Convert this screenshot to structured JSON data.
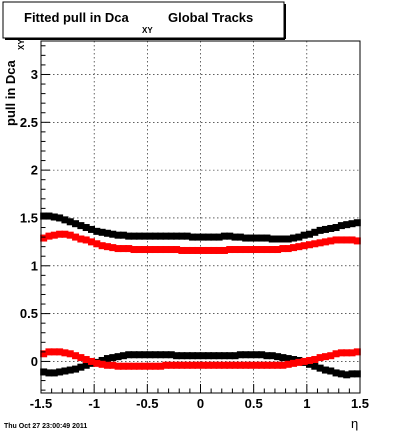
{
  "title": {
    "main": "Fitted pull in Dca",
    "subscript": "XY",
    "suffix": "Global Tracks"
  },
  "ylabel": {
    "main": "pull in Dca",
    "subscript": "XY"
  },
  "xlabel": "η",
  "timestamp": "Thu Oct 27 23:00:49 2011",
  "colors": {
    "series_black": "#000000",
    "series_red": "#ff0000",
    "grid": "#000000",
    "background": "#ffffff"
  },
  "chart_data": {
    "type": "scatter",
    "title": "Fitted pull in Dca XY Global Tracks",
    "xlabel": "η",
    "ylabel": "pull in Dca XY",
    "xlim": [
      -1.5,
      1.5
    ],
    "ylim": [
      -0.33,
      3.35
    ],
    "xticks": [
      -1.5,
      -1,
      -0.5,
      0,
      0.5,
      1,
      1.5
    ],
    "xtick_labels": [
      "-1.5",
      "-1",
      "-0.5",
      "0",
      "0.5",
      "1",
      "1.5"
    ],
    "yticks": [
      0,
      0.5,
      1,
      1.5,
      2,
      2.5,
      3
    ],
    "ytick_labels": [
      "0",
      "0.5",
      "1",
      "1.5",
      "2",
      "2.5",
      "3"
    ],
    "grid": true,
    "legend": "none",
    "series": [
      {
        "color": "#000000",
        "x": [
          -1.475,
          -1.425,
          -1.375,
          -1.325,
          -1.275,
          -1.225,
          -1.175,
          -1.125,
          -1.075,
          -1.025,
          -0.975,
          -0.925,
          -0.875,
          -0.825,
          -0.775,
          -0.725,
          -0.675,
          -0.625,
          -0.575,
          -0.525,
          -0.475,
          -0.425,
          -0.375,
          -0.325,
          -0.275,
          -0.225,
          -0.175,
          -0.125,
          -0.075,
          -0.025,
          0.025,
          0.075,
          0.125,
          0.175,
          0.225,
          0.275,
          0.325,
          0.375,
          0.425,
          0.475,
          0.525,
          0.575,
          0.625,
          0.675,
          0.725,
          0.775,
          0.825,
          0.875,
          0.925,
          0.975,
          1.025,
          1.075,
          1.125,
          1.175,
          1.225,
          1.275,
          1.325,
          1.375,
          1.425,
          1.475
        ],
        "y": [
          1.52,
          1.52,
          1.51,
          1.5,
          1.48,
          1.46,
          1.44,
          1.42,
          1.4,
          1.38,
          1.36,
          1.35,
          1.34,
          1.33,
          1.32,
          1.32,
          1.31,
          1.31,
          1.31,
          1.31,
          1.31,
          1.31,
          1.31,
          1.31,
          1.31,
          1.31,
          1.31,
          1.31,
          1.3,
          1.3,
          1.3,
          1.3,
          1.3,
          1.3,
          1.31,
          1.31,
          1.3,
          1.3,
          1.29,
          1.29,
          1.29,
          1.29,
          1.29,
          1.28,
          1.28,
          1.28,
          1.28,
          1.29,
          1.3,
          1.32,
          1.33,
          1.35,
          1.37,
          1.38,
          1.39,
          1.4,
          1.42,
          1.43,
          1.44,
          1.45
        ]
      },
      {
        "color": "#ff0000",
        "x": [
          -1.475,
          -1.425,
          -1.375,
          -1.325,
          -1.275,
          -1.225,
          -1.175,
          -1.125,
          -1.075,
          -1.025,
          -0.975,
          -0.925,
          -0.875,
          -0.825,
          -0.775,
          -0.725,
          -0.675,
          -0.625,
          -0.575,
          -0.525,
          -0.475,
          -0.425,
          -0.375,
          -0.325,
          -0.275,
          -0.225,
          -0.175,
          -0.125,
          -0.075,
          -0.025,
          0.025,
          0.075,
          0.125,
          0.175,
          0.225,
          0.275,
          0.325,
          0.375,
          0.425,
          0.475,
          0.525,
          0.575,
          0.625,
          0.675,
          0.725,
          0.775,
          0.825,
          0.875,
          0.925,
          0.975,
          1.025,
          1.075,
          1.125,
          1.175,
          1.225,
          1.275,
          1.325,
          1.375,
          1.425,
          1.475
        ],
        "y": [
          1.29,
          1.31,
          1.32,
          1.33,
          1.33,
          1.32,
          1.3,
          1.28,
          1.27,
          1.25,
          1.23,
          1.21,
          1.2,
          1.19,
          1.18,
          1.18,
          1.18,
          1.17,
          1.17,
          1.17,
          1.17,
          1.17,
          1.17,
          1.17,
          1.17,
          1.17,
          1.16,
          1.16,
          1.16,
          1.16,
          1.16,
          1.16,
          1.16,
          1.16,
          1.16,
          1.17,
          1.17,
          1.17,
          1.17,
          1.17,
          1.17,
          1.17,
          1.17,
          1.17,
          1.17,
          1.18,
          1.18,
          1.19,
          1.2,
          1.21,
          1.22,
          1.23,
          1.24,
          1.25,
          1.26,
          1.27,
          1.27,
          1.27,
          1.27,
          1.26
        ]
      },
      {
        "color": "#000000",
        "x": [
          -1.475,
          -1.425,
          -1.375,
          -1.325,
          -1.275,
          -1.225,
          -1.175,
          -1.125,
          -1.075,
          -1.025,
          -0.975,
          -0.925,
          -0.875,
          -0.825,
          -0.775,
          -0.725,
          -0.675,
          -0.625,
          -0.575,
          -0.525,
          -0.475,
          -0.425,
          -0.375,
          -0.325,
          -0.275,
          -0.225,
          -0.175,
          -0.125,
          -0.075,
          -0.025,
          0.025,
          0.075,
          0.125,
          0.175,
          0.225,
          0.275,
          0.325,
          0.375,
          0.425,
          0.475,
          0.525,
          0.575,
          0.625,
          0.675,
          0.725,
          0.775,
          0.825,
          0.875,
          0.925,
          0.975,
          1.025,
          1.075,
          1.125,
          1.175,
          1.225,
          1.275,
          1.325,
          1.375,
          1.425,
          1.475
        ],
        "y": [
          -0.11,
          -0.12,
          -0.12,
          -0.11,
          -0.1,
          -0.09,
          -0.08,
          -0.06,
          -0.04,
          -0.02,
          -0.01,
          0.01,
          0.03,
          0.04,
          0.05,
          0.06,
          0.07,
          0.07,
          0.07,
          0.07,
          0.07,
          0.07,
          0.07,
          0.07,
          0.07,
          0.06,
          0.06,
          0.06,
          0.06,
          0.06,
          0.06,
          0.06,
          0.06,
          0.06,
          0.06,
          0.06,
          0.06,
          0.07,
          0.07,
          0.07,
          0.07,
          0.07,
          0.06,
          0.06,
          0.05,
          0.04,
          0.03,
          0.02,
          0.01,
          -0.01,
          -0.03,
          -0.05,
          -0.07,
          -0.09,
          -0.1,
          -0.12,
          -0.13,
          -0.14,
          -0.13,
          -0.13
        ]
      },
      {
        "color": "#ff0000",
        "x": [
          -1.475,
          -1.425,
          -1.375,
          -1.325,
          -1.275,
          -1.225,
          -1.175,
          -1.125,
          -1.075,
          -1.025,
          -0.975,
          -0.925,
          -0.875,
          -0.825,
          -0.775,
          -0.725,
          -0.675,
          -0.625,
          -0.575,
          -0.525,
          -0.475,
          -0.425,
          -0.375,
          -0.325,
          -0.275,
          -0.225,
          -0.175,
          -0.125,
          -0.075,
          -0.025,
          0.025,
          0.075,
          0.125,
          0.175,
          0.225,
          0.275,
          0.325,
          0.375,
          0.425,
          0.475,
          0.525,
          0.575,
          0.625,
          0.675,
          0.725,
          0.775,
          0.825,
          0.875,
          0.925,
          0.975,
          1.025,
          1.075,
          1.125,
          1.175,
          1.225,
          1.275,
          1.325,
          1.375,
          1.425,
          1.475
        ],
        "y": [
          0.08,
          0.1,
          0.1,
          0.1,
          0.09,
          0.08,
          0.06,
          0.04,
          0.02,
          0.0,
          -0.02,
          -0.03,
          -0.04,
          -0.04,
          -0.05,
          -0.05,
          -0.05,
          -0.05,
          -0.05,
          -0.05,
          -0.05,
          -0.05,
          -0.05,
          -0.04,
          -0.04,
          -0.04,
          -0.04,
          -0.04,
          -0.04,
          -0.04,
          -0.04,
          -0.04,
          -0.04,
          -0.04,
          -0.04,
          -0.04,
          -0.04,
          -0.04,
          -0.04,
          -0.04,
          -0.04,
          -0.04,
          -0.04,
          -0.04,
          -0.04,
          -0.04,
          -0.03,
          -0.02,
          -0.01,
          0.0,
          0.01,
          0.02,
          0.04,
          0.05,
          0.06,
          0.08,
          0.09,
          0.09,
          0.09,
          0.1
        ]
      }
    ]
  }
}
